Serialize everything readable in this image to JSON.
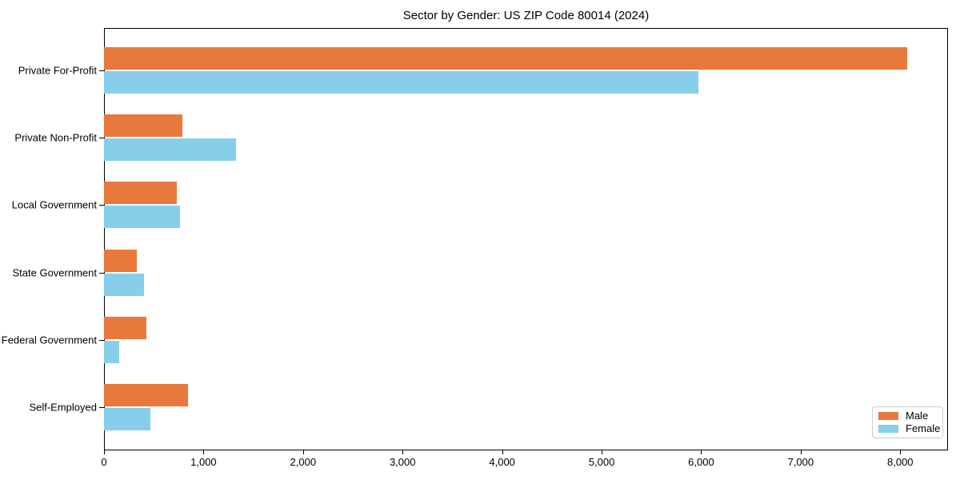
{
  "chart_data": {
    "type": "bar",
    "orientation": "horizontal",
    "title": "Sector by Gender: US ZIP Code 80014 (2024)",
    "categories": [
      "Private For-Profit",
      "Private Non-Profit",
      "Local Government",
      "State Government",
      "Federal Government",
      "Self-Employed"
    ],
    "series": [
      {
        "name": "Male",
        "color": "#e8783b",
        "values": [
          8070,
          790,
          735,
          330,
          430,
          845
        ]
      },
      {
        "name": "Female",
        "color": "#87ceeb",
        "values": [
          5970,
          1330,
          765,
          400,
          155,
          465
        ]
      }
    ],
    "xlabel": "",
    "ylabel": "",
    "xlim": [
      0,
      8480
    ],
    "xticks": [
      0,
      1000,
      2000,
      3000,
      4000,
      5000,
      6000,
      7000,
      8000
    ],
    "xtick_labels": [
      "0",
      "1,000",
      "2,000",
      "3,000",
      "4,000",
      "5,000",
      "6,000",
      "7,000",
      "8,000"
    ],
    "grid": false,
    "legend_position": "lower right",
    "spine_color": "#000000",
    "background_color": "#ffffff"
  }
}
